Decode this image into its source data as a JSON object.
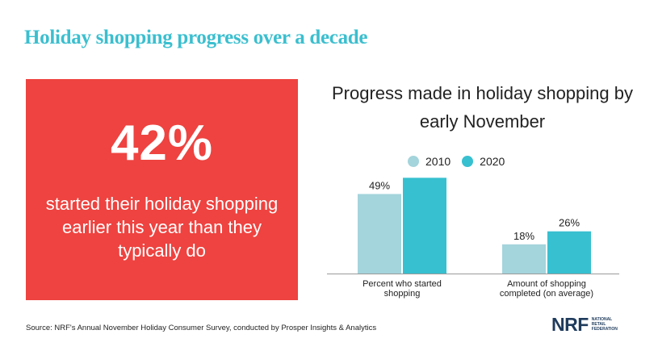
{
  "headline": "Holiday shopping progress over a decade",
  "stat": {
    "value": "42%",
    "description": "started their holiday shopping earlier this year than they typically do"
  },
  "chart_data": {
    "type": "bar",
    "title": "Progress made in holiday shopping by early November",
    "categories": [
      "Percent who started shopping",
      "Amount of shopping completed (on average)"
    ],
    "series": [
      {
        "name": "2010",
        "values": [
          49,
          18
        ],
        "color": "#a4d4dc"
      },
      {
        "name": "2020",
        "values": [
          59,
          26
        ],
        "color": "#37c0d0"
      }
    ],
    "value_suffix": "%",
    "ylim": [
      0,
      70
    ],
    "grid": false,
    "legend": "top-center"
  },
  "source": "Source: NRF's Annual November Holiday Consumer Survey, conducted by Prosper Insights & Analytics",
  "logo": {
    "mark": "NRF",
    "subtitle": [
      "National",
      "Retail",
      "Federation"
    ]
  },
  "colors": {
    "headline": "#3bbfcf",
    "stat_box": "#ee4340",
    "logo": "#1f3b5c"
  }
}
